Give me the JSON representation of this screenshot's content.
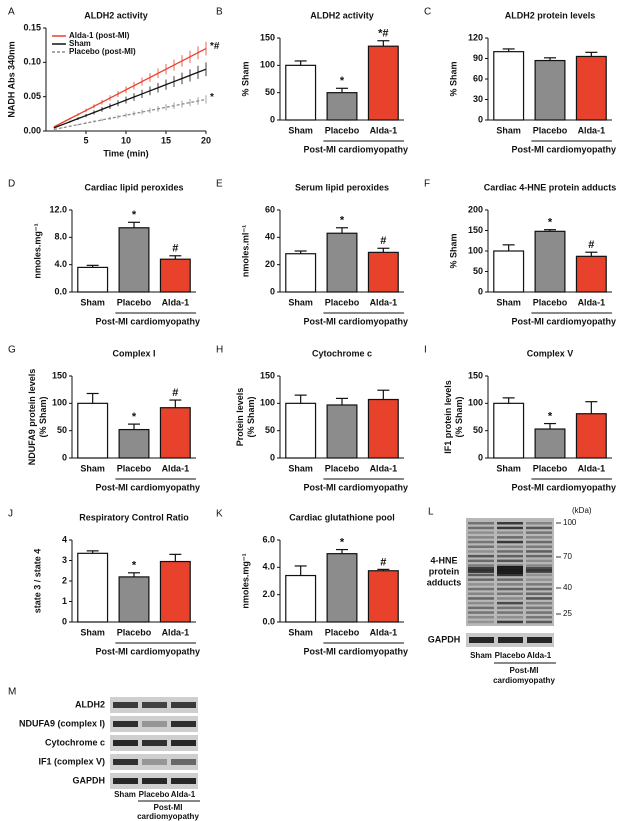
{
  "chart_data": [
    {
      "panel": "A",
      "type": "line",
      "title": "ALDH2 activity",
      "xlabel": "Time (min)",
      "ylabel": [
        "NADH Abs 340nm"
      ],
      "x": [
        1,
        2,
        3,
        4,
        5,
        6,
        7,
        8,
        9,
        10,
        11,
        12,
        13,
        14,
        15,
        16,
        17,
        18,
        19,
        20
      ],
      "xlim": [
        0,
        20
      ],
      "xticks": [
        5,
        10,
        15,
        20
      ],
      "ylim": [
        0,
        0.15
      ],
      "yticks": [
        {
          "value": 0,
          "label": "0.00"
        },
        {
          "value": 0.05,
          "label": "0.05"
        },
        {
          "value": 0.1,
          "label": "0.10"
        },
        {
          "value": 0.15,
          "label": "0.15"
        }
      ],
      "series": [
        {
          "name": "Alda-1 (post-MI)",
          "color": "#e8412c",
          "dashed": false,
          "annotation": "*#",
          "values": [
            0.006,
            0.012,
            0.018,
            0.024,
            0.03,
            0.036,
            0.042,
            0.048,
            0.054,
            0.06,
            0.066,
            0.072,
            0.078,
            0.084,
            0.09,
            0.096,
            0.102,
            0.108,
            0.114,
            0.12
          ],
          "errors": [
            0.0005,
            0.001,
            0.0015,
            0.002,
            0.0025,
            0.003,
            0.0035,
            0.004,
            0.0045,
            0.005,
            0.0055,
            0.006,
            0.0065,
            0.007,
            0.0075,
            0.008,
            0.0085,
            0.009,
            0.0095,
            0.01
          ]
        },
        {
          "name": "Sham",
          "color": "#111111",
          "dashed": false,
          "values": [
            0.0045,
            0.009,
            0.0135,
            0.018,
            0.0225,
            0.027,
            0.0315,
            0.036,
            0.0405,
            0.045,
            0.0495,
            0.054,
            0.0585,
            0.063,
            0.0675,
            0.072,
            0.0765,
            0.081,
            0.0855,
            0.09
          ],
          "errors": [
            0.0005,
            0.001,
            0.0015,
            0.002,
            0.0025,
            0.003,
            0.0035,
            0.004,
            0.0045,
            0.005,
            0.0055,
            0.006,
            0.0065,
            0.007,
            0.0075,
            0.008,
            0.0085,
            0.009,
            0.0095,
            0.01
          ]
        },
        {
          "name": "Placebo (post-MI)",
          "color": "#8c8c8c",
          "dashed": true,
          "annotation": "*",
          "values": [
            0.0023,
            0.0046,
            0.0069,
            0.0092,
            0.0115,
            0.0138,
            0.0161,
            0.0184,
            0.0207,
            0.023,
            0.0253,
            0.0276,
            0.0299,
            0.0322,
            0.0345,
            0.0368,
            0.0391,
            0.0414,
            0.0437,
            0.046
          ],
          "errors": [
            0.0003,
            0.0006,
            0.0009,
            0.0012,
            0.0015,
            0.0018,
            0.0021,
            0.0024,
            0.0027,
            0.003,
            0.0033,
            0.0036,
            0.0039,
            0.0042,
            0.0045,
            0.0048,
            0.0051,
            0.0054,
            0.0057,
            0.006
          ]
        }
      ]
    },
    {
      "panel": "B",
      "type": "bar",
      "title": "ALDH2 activity",
      "ylabel": [
        "% Sham"
      ],
      "categories": [
        "Sham",
        "Placebo",
        "Alda-1"
      ],
      "colors": [
        "#ffffff",
        "#8c8c8c",
        "#e8412c"
      ],
      "values": [
        100,
        50,
        135
      ],
      "errors": [
        8,
        8,
        10
      ],
      "annotations": [
        null,
        "*",
        "*#"
      ],
      "ylim": [
        0,
        150
      ],
      "yticks": [
        0,
        50,
        100,
        150
      ],
      "group_label": "Post-MI cardiomyopathy"
    },
    {
      "panel": "C",
      "type": "bar",
      "title": "ALDH2 protein levels",
      "ylabel": [
        "% Sham"
      ],
      "categories": [
        "Sham",
        "Placebo",
        "Alda-1"
      ],
      "colors": [
        "#ffffff",
        "#8c8c8c",
        "#e8412c"
      ],
      "values": [
        100,
        87,
        93
      ],
      "errors": [
        4,
        4,
        6
      ],
      "annotations": [
        null,
        null,
        null
      ],
      "ylim": [
        0,
        120
      ],
      "yticks": [
        0,
        30,
        60,
        90,
        120
      ],
      "group_label": "Post-MI cardiomyopathy"
    },
    {
      "panel": "D",
      "type": "bar",
      "title": "Cardiac lipid peroxides",
      "ylabel": [
        "nmoles.mg⁻¹"
      ],
      "categories": [
        "Sham",
        "Placebo",
        "Alda-1"
      ],
      "colors": [
        "#ffffff",
        "#8c8c8c",
        "#e8412c"
      ],
      "values": [
        3.6,
        9.4,
        4.8
      ],
      "errors": [
        0.3,
        0.8,
        0.5
      ],
      "annotations": [
        null,
        "*",
        "#"
      ],
      "ylim": [
        0,
        12
      ],
      "yticks": [
        {
          "value": 0,
          "label": "0.0"
        },
        {
          "value": 4,
          "label": "4.0"
        },
        {
          "value": 8,
          "label": "8.0"
        },
        {
          "value": 12,
          "label": "12.0"
        }
      ],
      "group_label": "Post-MI cardiomyopathy"
    },
    {
      "panel": "E",
      "type": "bar",
      "title": "Serum lipid peroxides",
      "ylabel": [
        "nmoles.ml⁻¹"
      ],
      "categories": [
        "Sham",
        "Placebo",
        "Alda-1"
      ],
      "colors": [
        "#ffffff",
        "#8c8c8c",
        "#e8412c"
      ],
      "values": [
        28,
        43,
        29
      ],
      "errors": [
        2,
        4,
        3
      ],
      "annotations": [
        null,
        "*",
        "#"
      ],
      "ylim": [
        0,
        60
      ],
      "yticks": [
        0,
        20,
        40,
        60
      ],
      "group_label": "Post-MI cardiomyopathy"
    },
    {
      "panel": "F",
      "type": "bar",
      "title": "Cardiac 4-HNE protein adducts",
      "ylabel": [
        "% Sham"
      ],
      "categories": [
        "Sham",
        "Placebo",
        "Alda-1"
      ],
      "colors": [
        "#ffffff",
        "#8c8c8c",
        "#e8412c"
      ],
      "values": [
        100,
        148,
        87
      ],
      "errors": [
        15,
        4,
        10
      ],
      "annotations": [
        null,
        "*",
        "#"
      ],
      "ylim": [
        0,
        200
      ],
      "yticks": [
        0,
        50,
        100,
        150,
        200
      ],
      "group_label": "Post-MI cardiomyopathy"
    },
    {
      "panel": "G",
      "type": "bar",
      "title": "Complex I",
      "ylabel": [
        "NDUFA9 protein levels",
        "(% Sham)"
      ],
      "categories": [
        "Sham",
        "Placebo",
        "Alda-1"
      ],
      "colors": [
        "#ffffff",
        "#8c8c8c",
        "#e8412c"
      ],
      "values": [
        100,
        52,
        92
      ],
      "errors": [
        18,
        10,
        14
      ],
      "annotations": [
        null,
        "*",
        "#"
      ],
      "ylim": [
        0,
        150
      ],
      "yticks": [
        0,
        50,
        100,
        150
      ],
      "group_label": "Post-MI cardiomyopathy"
    },
    {
      "panel": "H",
      "type": "bar",
      "title": "Cytochrome c",
      "ylabel": [
        "Protein levels",
        "(% Sham)"
      ],
      "categories": [
        "Sham",
        "Placebo",
        "Alda-1"
      ],
      "colors": [
        "#ffffff",
        "#8c8c8c",
        "#e8412c"
      ],
      "values": [
        100,
        97,
        107
      ],
      "errors": [
        15,
        12,
        17
      ],
      "annotations": [
        null,
        null,
        null
      ],
      "ylim": [
        0,
        150
      ],
      "yticks": [
        0,
        50,
        100,
        150
      ],
      "group_label": "Post-MI cardiomyopathy"
    },
    {
      "panel": "I",
      "type": "bar",
      "title": "Complex V",
      "ylabel": [
        "IF1 protein levels",
        "(% Sham)"
      ],
      "categories": [
        "Sham",
        "Placebo",
        "Alda-1"
      ],
      "colors": [
        "#ffffff",
        "#8c8c8c",
        "#e8412c"
      ],
      "values": [
        100,
        53,
        81
      ],
      "errors": [
        10,
        10,
        22
      ],
      "annotations": [
        null,
        "*",
        null
      ],
      "ylim": [
        0,
        150
      ],
      "yticks": [
        0,
        50,
        100,
        150
      ],
      "group_label": "Post-MI cardiomyopathy"
    },
    {
      "panel": "J",
      "type": "bar",
      "title": "Respiratory Control Ratio",
      "ylabel": [
        "state 3 / state 4"
      ],
      "categories": [
        "Sham",
        "Placebo",
        "Alda-1"
      ],
      "colors": [
        "#ffffff",
        "#8c8c8c",
        "#e8412c"
      ],
      "values": [
        3.35,
        2.2,
        2.95
      ],
      "errors": [
        0.12,
        0.2,
        0.35
      ],
      "annotations": [
        null,
        "*",
        null
      ],
      "ylim": [
        0,
        4
      ],
      "yticks": [
        0,
        1,
        2,
        3,
        4
      ],
      "group_label": "Post-MI cardiomyopathy"
    },
    {
      "panel": "K",
      "type": "bar",
      "title": "Cardiac glutathione pool",
      "ylabel": [
        "nmoles.mg⁻¹"
      ],
      "categories": [
        "Sham",
        "Placebo",
        "Alda-1"
      ],
      "colors": [
        "#ffffff",
        "#8c8c8c",
        "#e8412c"
      ],
      "values": [
        3.4,
        5.0,
        3.75
      ],
      "errors": [
        0.7,
        0.3,
        0.1
      ],
      "annotations": [
        null,
        "*",
        "#"
      ],
      "ylim": [
        0,
        6
      ],
      "yticks": [
        {
          "value": 0,
          "label": "0.0"
        },
        {
          "value": 2,
          "label": "2.0"
        },
        {
          "value": 4,
          "label": "4.0"
        },
        {
          "value": 6,
          "label": "6.0"
        }
      ],
      "group_label": "Post-MI cardiomyopathy"
    }
  ],
  "blot_L": {
    "panel": "L",
    "unit": "(kDa)",
    "markers": [
      100,
      70,
      40,
      25
    ],
    "band_label": [
      "4-HNE",
      "protein",
      "adducts"
    ],
    "loading_label": "GAPDH",
    "lanes": [
      "Sham",
      "Placebo",
      "Alda-1"
    ],
    "group_label": [
      "Post-MI",
      "cardiomyopathy"
    ]
  },
  "blot_M": {
    "panel": "M",
    "rows": [
      "ALDH2",
      "NDUFA9 (complex I)",
      "Cytochrome c",
      "IF1 (complex V)",
      "GAPDH"
    ],
    "lanes": [
      "Sham",
      "Placebo",
      "Alda-1"
    ],
    "group_label": [
      "Post-MI",
      "cardiomyopathy"
    ]
  }
}
